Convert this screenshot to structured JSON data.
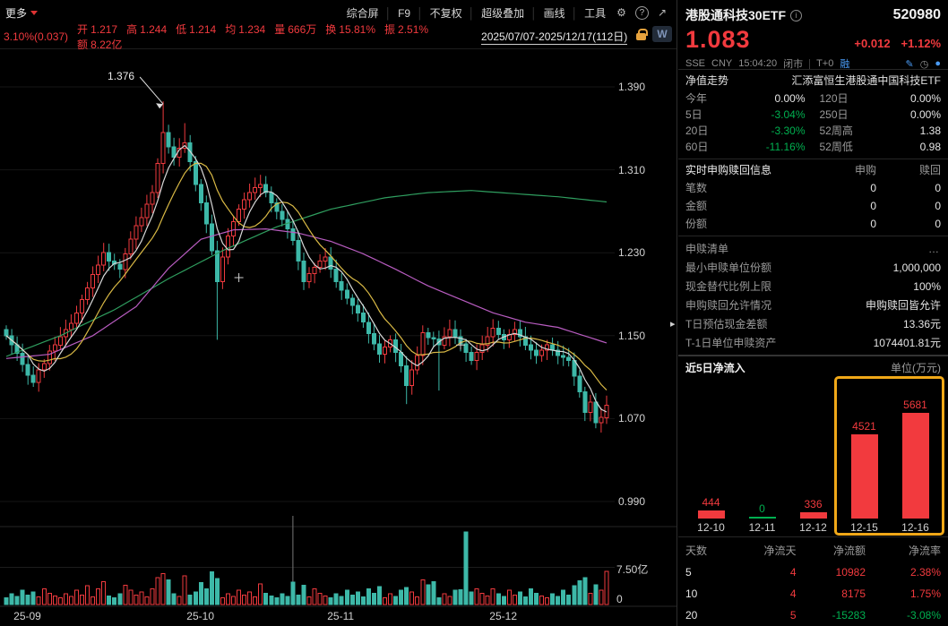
{
  "toolbar": {
    "more": "更多",
    "buttons": [
      "综合屏",
      "F9",
      "不复权",
      "超级叠加",
      "画线",
      "工具"
    ],
    "gear_icon": "⚙",
    "help_icon": "?",
    "expand_icon": "↗",
    "wf_badge": "W",
    "date_range": "2025/07/07-2025/12/17(112日)"
  },
  "quote_bar": {
    "change": "3.10%(0.037)",
    "stats": [
      {
        "label": "开",
        "value": "1.217"
      },
      {
        "label": "高",
        "value": "1.244"
      },
      {
        "label": "低",
        "value": "1.214"
      },
      {
        "label": "均",
        "value": "1.234"
      },
      {
        "label": "量",
        "value": "666万"
      },
      {
        "label": "换",
        "value": "15.81%"
      },
      {
        "label": "振",
        "value": "2.51%"
      },
      {
        "label": "额",
        "value": "8.22亿"
      }
    ]
  },
  "chart_data": {
    "type": "candlestick",
    "title": "港股通科技30ETF 日K线",
    "y_ticks": [
      1.39,
      1.31,
      1.23,
      1.15,
      1.07,
      0.99
    ],
    "x_labels": [
      {
        "label": "25-09",
        "index": 4
      },
      {
        "label": "25-10",
        "index": 36
      },
      {
        "label": "25-11",
        "index": 62
      },
      {
        "label": "25-12",
        "index": 92
      }
    ],
    "volume_ticks": [
      {
        "label": "7.50亿",
        "value": 7.5
      },
      {
        "label": "0",
        "value": 0
      }
    ],
    "volume_max": 15,
    "annotation_high": {
      "value": "1.376",
      "index": 29
    },
    "crosshair_index": 53,
    "cross_markers": [
      [
        43,
        1.206
      ],
      [
        84,
        1.141
      ]
    ],
    "closes": [
      1.15,
      1.141,
      1.133,
      1.122,
      1.112,
      1.105,
      1.117,
      1.123,
      1.135,
      1.141,
      1.149,
      1.156,
      1.162,
      1.172,
      1.185,
      1.196,
      1.209,
      1.218,
      1.23,
      1.222,
      1.219,
      1.214,
      1.229,
      1.243,
      1.256,
      1.264,
      1.277,
      1.288,
      1.316,
      1.346,
      1.332,
      1.322,
      1.331,
      1.336,
      1.318,
      1.296,
      1.278,
      1.258,
      1.232,
      1.202,
      1.226,
      1.246,
      1.26,
      1.272,
      1.281,
      1.288,
      1.293,
      1.296,
      1.288,
      1.278,
      1.27,
      1.262,
      1.253,
      1.242,
      1.222,
      1.202,
      1.21,
      1.216,
      1.222,
      1.226,
      1.214,
      1.202,
      1.194,
      1.186,
      1.179,
      1.172,
      1.163,
      1.152,
      1.142,
      1.132,
      1.139,
      1.146,
      1.134,
      1.121,
      1.102,
      1.117,
      1.131,
      1.153,
      1.148,
      1.147,
      1.141,
      1.149,
      1.156,
      1.149,
      1.142,
      1.134,
      1.126,
      1.134,
      1.141,
      1.149,
      1.157,
      1.151,
      1.146,
      1.151,
      1.156,
      1.149,
      1.141,
      1.136,
      1.131,
      1.136,
      1.141,
      1.136,
      1.131,
      1.129,
      1.126,
      1.111,
      1.096,
      1.076,
      1.086,
      1.066,
      1.071,
      1.083
    ],
    "volumes": [
      1.4,
      2.2,
      1.6,
      2.9,
      1.9,
      2.5,
      1.5,
      3.2,
      2.3,
      1.7,
      1.4,
      2.2,
      1.6,
      2.9,
      1.9,
      3.8,
      1.5,
      3.2,
      4.6,
      1.7,
      1.4,
      2.2,
      3.9,
      2.9,
      1.9,
      2.5,
      1.5,
      3.2,
      5.4,
      6.2,
      5.0,
      2.2,
      1.6,
      5.8,
      1.9,
      2.5,
      4.4,
      3.2,
      6.6,
      5.2,
      1.4,
      2.2,
      1.6,
      2.9,
      1.9,
      2.5,
      1.5,
      4.2,
      2.3,
      1.7,
      1.4,
      2.2,
      1.6,
      4.5,
      1.9,
      3.9,
      1.5,
      3.2,
      2.3,
      1.7,
      1.4,
      2.2,
      1.6,
      2.9,
      1.9,
      2.5,
      1.5,
      3.2,
      2.3,
      3.6,
      1.4,
      2.2,
      1.6,
      2.9,
      3.4,
      2.5,
      1.5,
      5.0,
      4.0,
      4.6,
      1.4,
      2.2,
      1.6,
      2.9,
      3.0,
      14.6,
      2.5,
      3.2,
      2.3,
      1.7,
      3.2,
      2.2,
      1.6,
      2.9,
      1.9,
      2.5,
      1.5,
      3.2,
      2.3,
      1.7,
      1.4,
      2.2,
      1.6,
      2.9,
      1.9,
      3.8,
      4.8,
      5.4,
      2.3,
      4.0,
      2.9,
      6.7
    ],
    "wick_high_override": {
      "29": 1.376,
      "33": 1.355
    },
    "wick_low_override": {
      "39": 1.146,
      "74": 1.084,
      "80": 1.097
    }
  },
  "panel": {
    "name": "港股通科技30ETF",
    "code": "520980",
    "price": "1.083",
    "change_abs": "+0.012",
    "change_pct": "+1.12%",
    "exchange": "SSE",
    "currency": "CNY",
    "time": "15:04:20",
    "market_status": "闭市",
    "t0": "T+0",
    "rong": "融",
    "nav_label": "净值走势",
    "fund_name": "汇添富恒生港股通中国科技ETF",
    "metrics": [
      {
        "l1": "今年",
        "v1": "0.00%",
        "c1": "white",
        "l2": "120日",
        "v2": "0.00%",
        "c2": "white"
      },
      {
        "l1": "5日",
        "v1": "-3.04%",
        "c1": "green",
        "l2": "250日",
        "v2": "0.00%",
        "c2": "white"
      },
      {
        "l1": "20日",
        "v1": "-3.30%",
        "c1": "green",
        "l2": "52周高",
        "v2": "1.38",
        "c2": "white"
      },
      {
        "l1": "60日",
        "v1": "-11.16%",
        "c1": "green",
        "l2": "52周低",
        "v2": "0.98",
        "c2": "white"
      }
    ],
    "realtime": {
      "title": "实时申购赎回信息",
      "col1": "申购",
      "col2": "赎回",
      "rows": [
        {
          "label": "笔数",
          "v1": "0",
          "v2": "0"
        },
        {
          "label": "金额",
          "v1": "0",
          "v2": "0"
        },
        {
          "label": "份额",
          "v1": "0",
          "v2": "0"
        }
      ]
    },
    "detail_rows": [
      {
        "label": "申赎清单",
        "value": "…"
      },
      {
        "label": "最小申赎单位份额",
        "value": "1,000,000"
      },
      {
        "label": "现金替代比例上限",
        "value": "100%"
      },
      {
        "label": "申购赎回允许情况",
        "value": "申购赎回皆允许"
      },
      {
        "label": "T日预估现金差额",
        "value": "13.36元"
      },
      {
        "label": "T-1日单位申赎资产",
        "value": "1074401.81元"
      }
    ],
    "netflow": {
      "title": "近5日净流入",
      "unit": "单位(万元)",
      "bars": [
        {
          "date": "12-10",
          "value": 444
        },
        {
          "date": "12-11",
          "value": 0
        },
        {
          "date": "12-12",
          "value": 336
        },
        {
          "date": "12-15",
          "value": 4521
        },
        {
          "date": "12-16",
          "value": 5681
        }
      ],
      "highlight_start": 3
    },
    "flow_table": {
      "headers": [
        "天数",
        "净流天",
        "净流额",
        "净流率"
      ],
      "rows": [
        {
          "days": "5",
          "net_days": "4",
          "net_amount": "10982",
          "net_rate": "2.38%",
          "amount_dir": "up"
        },
        {
          "days": "10",
          "net_days": "4",
          "net_amount": "8175",
          "net_rate": "1.75%",
          "amount_dir": "up"
        },
        {
          "days": "20",
          "net_days": "5",
          "net_amount": "-15283",
          "net_rate": "-3.08%",
          "amount_dir": "down"
        }
      ]
    }
  },
  "colors": {
    "up": "#ef3a3e",
    "down": "#3db8a8",
    "red_text": "#f23a3e",
    "green_text": "#00b050",
    "yellow": "#d9b945",
    "magenta": "#b85cc0",
    "green_line": "#2f9e5f",
    "white_line": "#d8d8d8",
    "highlight_box": "#f0a818",
    "blue": "#4a9bf5"
  }
}
